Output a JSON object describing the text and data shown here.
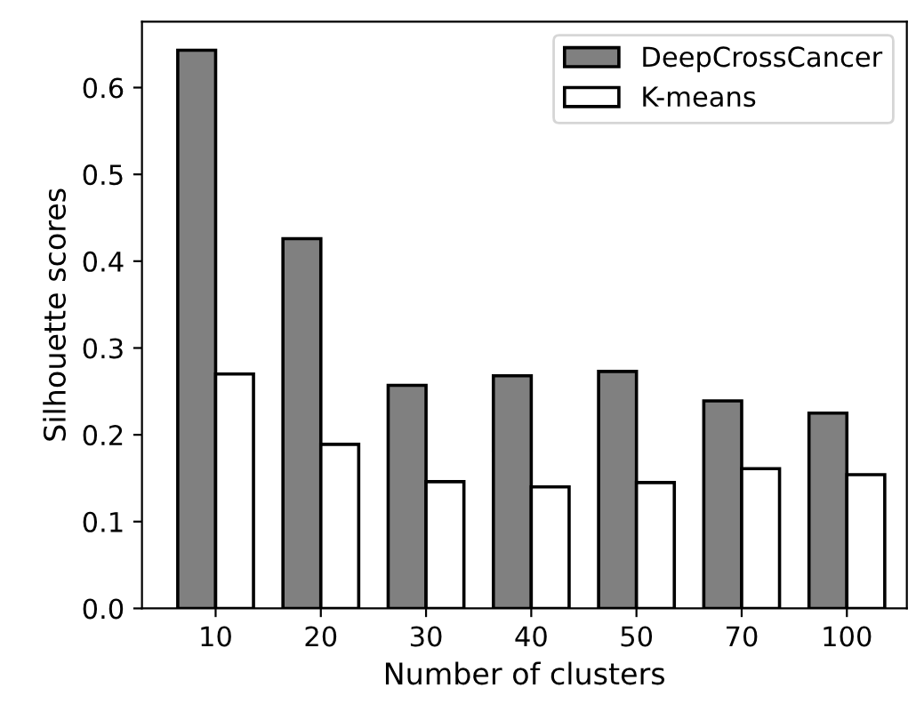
{
  "chart_data": {
    "type": "bar",
    "xlabel": "Number of clusters",
    "ylabel": "Silhouette scores",
    "categories": [
      "10",
      "20",
      "30",
      "40",
      "50",
      "70",
      "100"
    ],
    "series": [
      {
        "name": "DeepCrossCancer",
        "color": "#808080",
        "values": [
          0.643,
          0.426,
          0.257,
          0.268,
          0.273,
          0.239,
          0.225
        ]
      },
      {
        "name": "K-means",
        "color": "#ffffff",
        "values": [
          0.27,
          0.189,
          0.146,
          0.14,
          0.145,
          0.161,
          0.154
        ]
      }
    ],
    "ylim": [
      0,
      0.676
    ],
    "yticks": [
      {
        "value": 0,
        "label": "0.0"
      },
      0.1,
      0.2,
      0.3,
      0.4,
      0.5,
      0.6
    ],
    "legend": "top right",
    "grid": false
  }
}
